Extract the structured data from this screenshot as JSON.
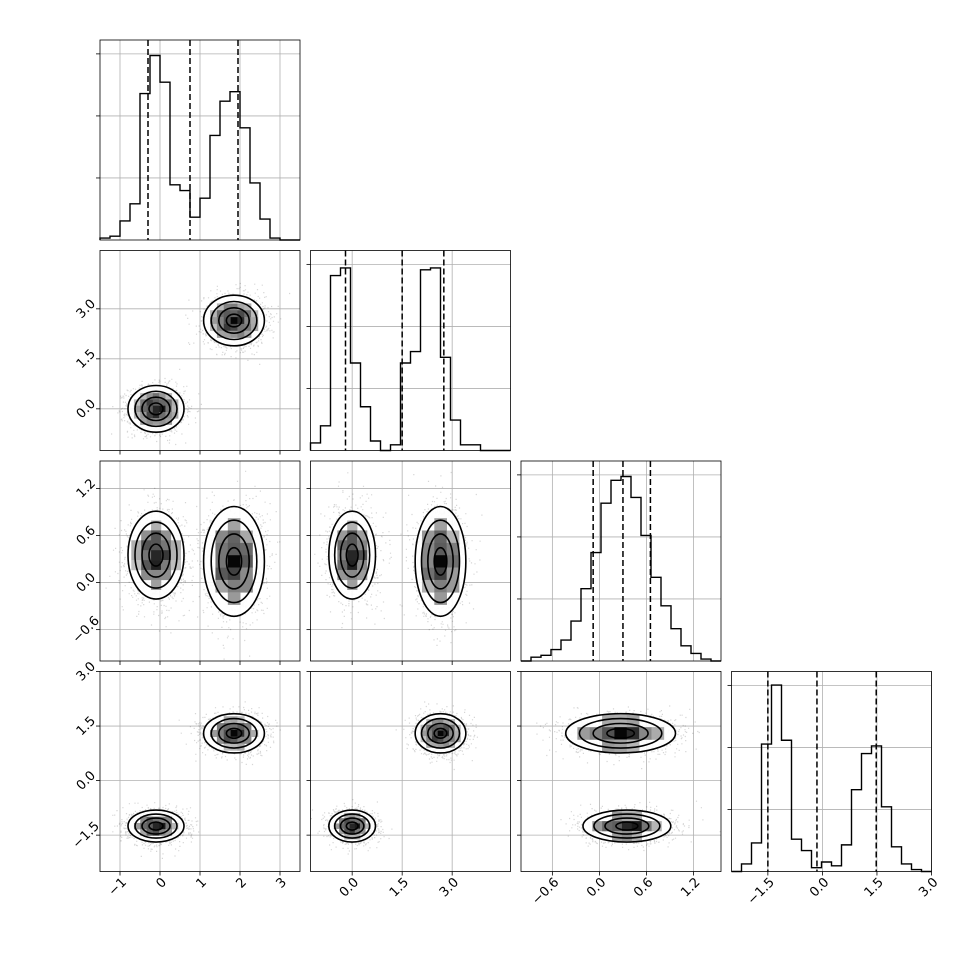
{
  "chart_data": {
    "type": "corner",
    "grid": true,
    "n_params": 4,
    "params": [
      {
        "id": "p1",
        "range": [
          -1.5,
          3.5
        ],
        "ticks": [
          -1,
          0,
          1,
          2,
          3
        ],
        "tick_labels": [
          "−1",
          "0",
          "1",
          "2",
          "3"
        ],
        "quantiles": [
          -0.3,
          0.75,
          1.95
        ],
        "hist": {
          "edges_start": -1.5,
          "bin_width": 0.25,
          "counts": [
            0.01,
            0.02,
            0.1,
            0.19,
            0.77,
            0.97,
            0.83,
            0.29,
            0.26,
            0.12,
            0.22,
            0.55,
            0.73,
            0.78,
            0.59,
            0.3,
            0.11,
            0.01,
            0.0,
            0.0
          ]
        }
      },
      {
        "id": "p2",
        "range": [
          -1.25,
          4.75
        ],
        "ticks": [
          0.0,
          1.5,
          3.0
        ],
        "tick_labels": [
          "0.0",
          "1.5",
          "3.0"
        ],
        "quantiles": [
          -0.2,
          1.5,
          2.75
        ],
        "hist": {
          "edges_start": -1.25,
          "bin_width": 0.3,
          "counts": [
            0.04,
            0.13,
            0.92,
            0.96,
            0.46,
            0.23,
            0.05,
            0.0,
            0.03,
            0.46,
            0.52,
            0.95,
            0.96,
            0.49,
            0.16,
            0.03,
            0.03,
            0.0,
            0.0,
            0.0
          ]
        }
      },
      {
        "id": "p3",
        "range": [
          -1.0,
          1.55
        ],
        "ticks": [
          -0.6,
          0.0,
          0.6,
          1.2
        ],
        "tick_labels": [
          "−0.6",
          "0.0",
          "0.6",
          "1.2"
        ],
        "quantiles": [
          -0.08,
          0.3,
          0.65
        ],
        "hist": {
          "edges_start": -1.0,
          "bin_width": 0.1275,
          "counts": [
            0.0,
            0.02,
            0.03,
            0.06,
            0.11,
            0.21,
            0.38,
            0.57,
            0.83,
            0.95,
            0.97,
            0.86,
            0.66,
            0.44,
            0.29,
            0.17,
            0.08,
            0.04,
            0.01,
            0.0
          ]
        }
      },
      {
        "id": "p4",
        "range": [
          -2.5,
          3.0
        ],
        "ticks": [
          -1.5,
          0.0,
          1.5,
          3.0
        ],
        "tick_labels": [
          "−1.5",
          "0.0",
          "1.5",
          "3.0"
        ],
        "quantiles": [
          -1.5,
          -0.15,
          1.48
        ],
        "hist": {
          "edges_start": -2.5,
          "bin_width": 0.275,
          "counts": [
            0.0,
            0.04,
            0.15,
            0.67,
            0.98,
            0.69,
            0.17,
            0.11,
            0.02,
            0.05,
            0.03,
            0.14,
            0.43,
            0.62,
            0.66,
            0.34,
            0.13,
            0.04,
            0.01,
            0.0
          ]
        }
      }
    ],
    "modes": [
      {
        "weight": 0.5,
        "mean": [
          -0.1,
          0.0,
          0.35,
          -1.25
        ],
        "std": [
          0.35,
          0.35,
          0.28,
          0.22
        ]
      },
      {
        "weight": 0.5,
        "mean": [
          1.85,
          2.65,
          0.27,
          1.3
        ],
        "std": [
          0.38,
          0.38,
          0.35,
          0.27
        ]
      }
    ],
    "contour_levels_sigma": [
      0.5,
      1.0,
      1.5,
      2.0
    ]
  }
}
